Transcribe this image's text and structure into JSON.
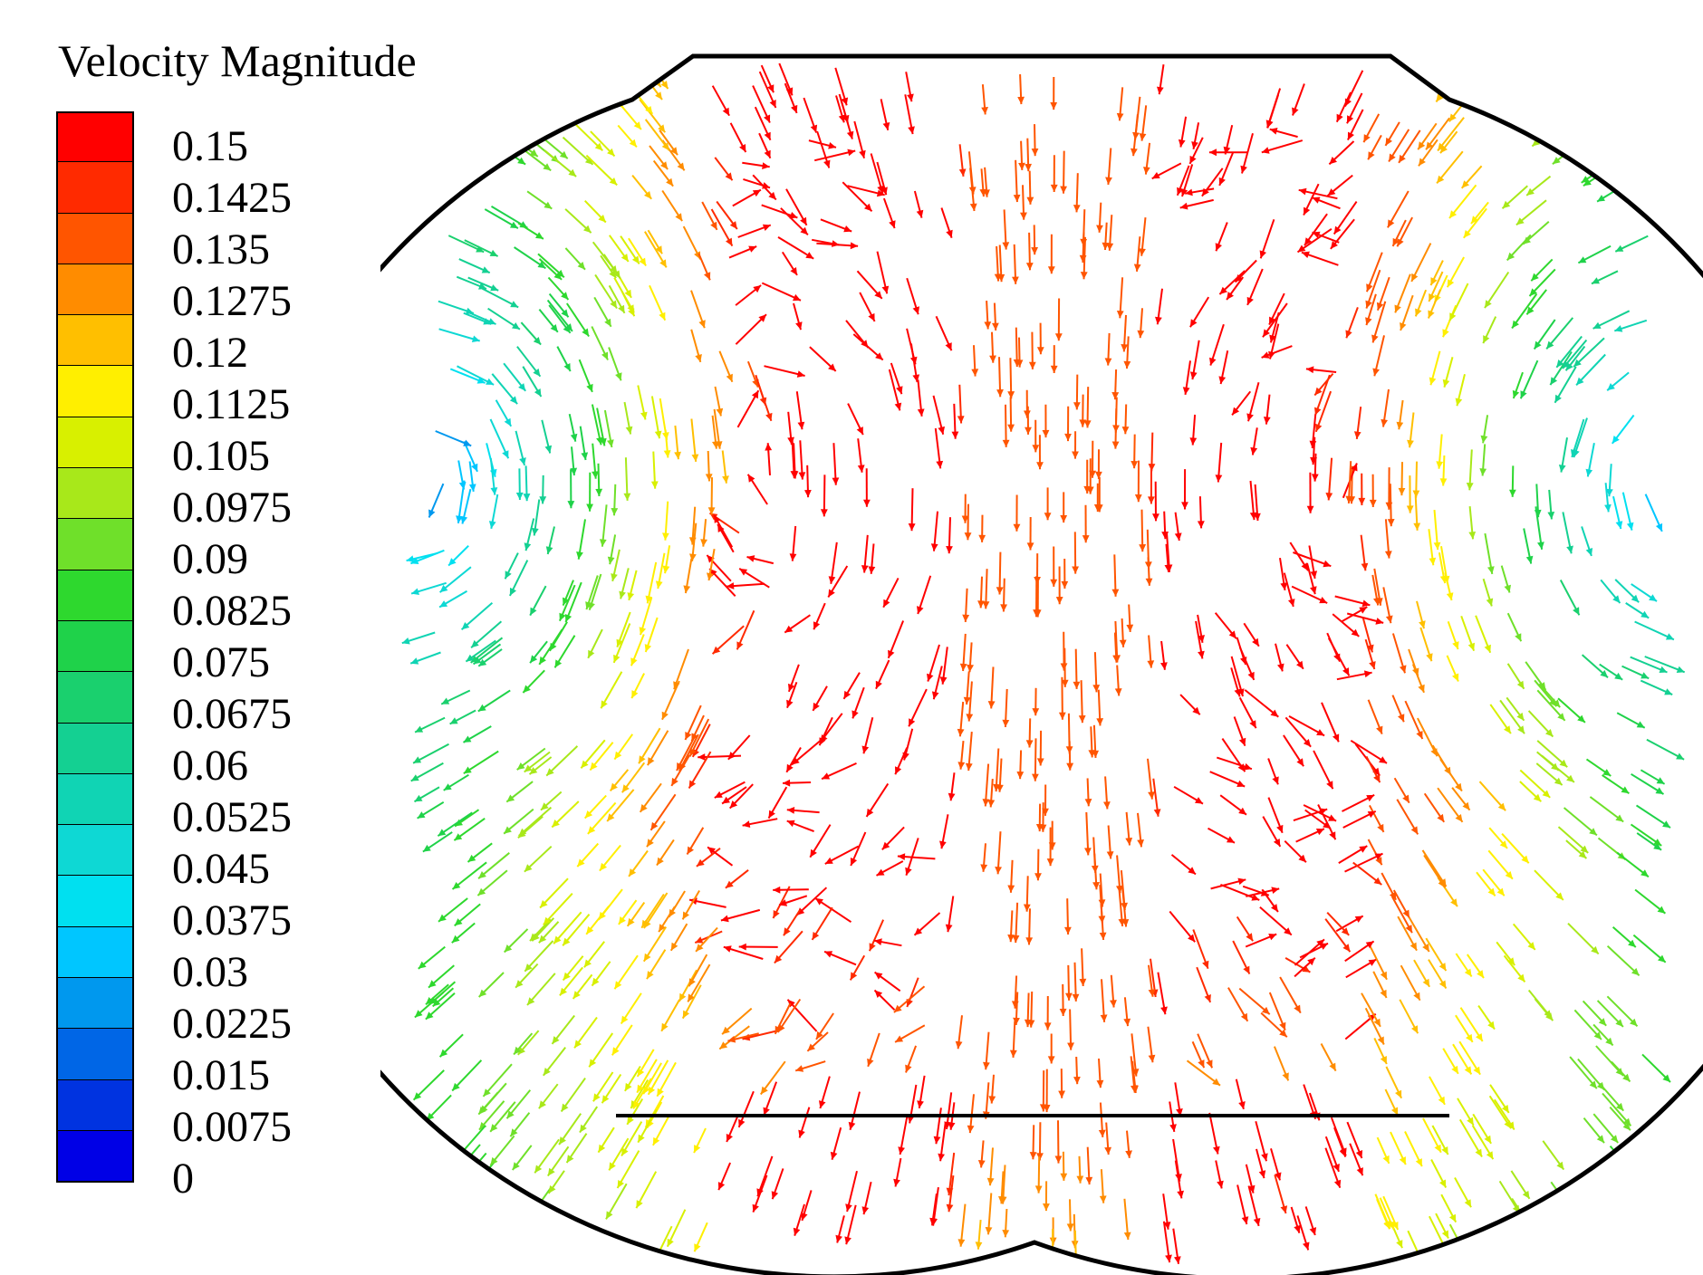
{
  "legend": {
    "title": "Velocity Magnitude",
    "levels": [
      "0.15",
      "0.1425",
      "0.135",
      "0.1275",
      "0.12",
      "0.1125",
      "0.105",
      "0.0975",
      "0.09",
      "0.0825",
      "0.075",
      "0.0675",
      "0.06",
      "0.0525",
      "0.045",
      "0.0375",
      "0.03",
      "0.0225",
      "0.015",
      "0.0075",
      "0"
    ],
    "band_colors": [
      "#ff0000",
      "#ff2a00",
      "#ff5500",
      "#ff8c00",
      "#ffbf00",
      "#ffef00",
      "#d8f000",
      "#a8e81a",
      "#6fe02a",
      "#2ed82e",
      "#1fd24a",
      "#1ad06e",
      "#14d092",
      "#10d4b4",
      "#0ed8d4",
      "#00e0f0",
      "#00c6ff",
      "#0098ee",
      "#0066e6",
      "#0033e0",
      "#0000e6"
    ],
    "vmax": 0.15
  },
  "diagram": {
    "type": "velocity-vector-field",
    "boundary_color": "#000000"
  }
}
